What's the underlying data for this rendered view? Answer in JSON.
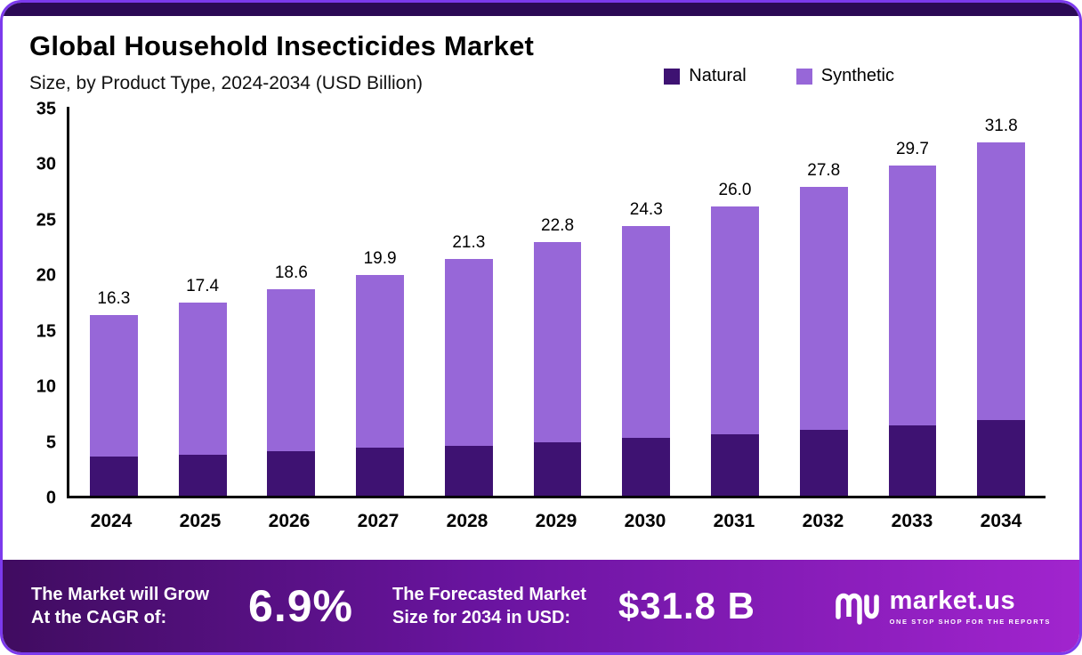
{
  "header": {
    "title": "Global Household Insecticides Market",
    "subtitle": "Size, by Product Type, 2024-2034 (USD Billion)"
  },
  "legend": [
    {
      "label": "Natural",
      "color": "#3e1272"
    },
    {
      "label": "Synthetic",
      "color": "#9767d8"
    }
  ],
  "chart_data": {
    "type": "bar",
    "stacked": true,
    "title": "Global Household Insecticides Market Size, by Product Type, 2024-2034 (USD Billion)",
    "categories": [
      "2024",
      "2025",
      "2026",
      "2027",
      "2028",
      "2029",
      "2030",
      "2031",
      "2032",
      "2033",
      "2034"
    ],
    "series": [
      {
        "name": "Natural",
        "color": "#3e1272",
        "values": [
          3.5,
          3.7,
          4.0,
          4.3,
          4.5,
          4.8,
          5.2,
          5.5,
          5.9,
          6.3,
          6.8
        ]
      },
      {
        "name": "Synthetic",
        "color": "#9767d8",
        "values": [
          12.8,
          13.7,
          14.6,
          15.6,
          16.8,
          18.0,
          19.1,
          20.5,
          21.9,
          23.4,
          25.0
        ]
      }
    ],
    "totals": [
      16.3,
      17.4,
      18.6,
      19.9,
      21.3,
      22.8,
      24.3,
      26.0,
      27.8,
      29.7,
      31.8
    ],
    "xlabel": "",
    "ylabel": "",
    "ylim": [
      0,
      35
    ],
    "yticks": [
      0,
      5,
      10,
      15,
      20,
      25,
      30,
      35
    ],
    "grid": false,
    "legend_position": "top-right"
  },
  "footer": {
    "cagr_label_line1": "The Market will Grow",
    "cagr_label_line2": "At the CAGR of:",
    "cagr_value": "6.9%",
    "forecast_label_line1": "The Forecasted Market",
    "forecast_label_line2": "Size for 2034 in USD:",
    "forecast_value": "$31.8 B",
    "brand": "market.us",
    "brand_tagline": "ONE STOP SHOP FOR THE REPORTS"
  },
  "colors": {
    "card_border": "#7c3aed",
    "top_strip": "#2b0a55",
    "natural_bar": "#3e1272",
    "synthetic_bar": "#9767d8",
    "footer_gradient_start": "#400c60",
    "footer_gradient_end": "#a124ce"
  }
}
